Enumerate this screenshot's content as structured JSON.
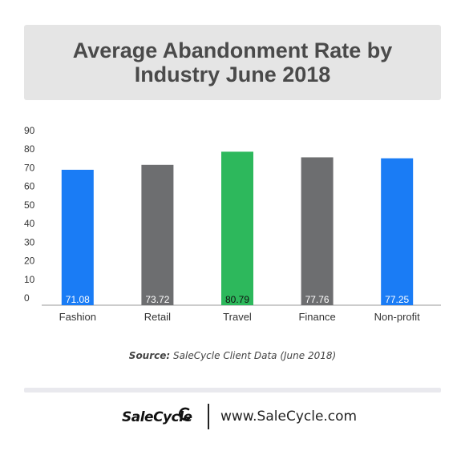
{
  "header": {
    "title": "Average Abandonment Rate by Industry June 2018"
  },
  "chart_data": {
    "type": "bar",
    "title": "Average Abandonment Rate by Industry June 2018",
    "xlabel": "",
    "ylabel": "",
    "categories": [
      "Fashion",
      "Retail",
      "Travel",
      "Finance",
      "Non-profit"
    ],
    "values": [
      71.08,
      73.72,
      80.79,
      77.76,
      77.25
    ],
    "data_labels": [
      "71.08",
      "73.72",
      "80.79",
      "77.76",
      "77.25"
    ],
    "bar_colors": [
      "#1a7cf5",
      "#6d6e70",
      "#2db85c",
      "#6d6e70",
      "#1a7cf5"
    ],
    "yticks": [
      "0",
      "10",
      "20",
      "30",
      "40",
      "50",
      "60",
      "70",
      "80",
      "90"
    ],
    "ylim": [
      0,
      90
    ],
    "grid": false,
    "legend": "none"
  },
  "source": {
    "label": "Source:",
    "text": " SaleCycle Client Data (June 2018)"
  },
  "footer": {
    "logo_text": "SaleCycle",
    "url": "www.SaleCycle.com"
  }
}
